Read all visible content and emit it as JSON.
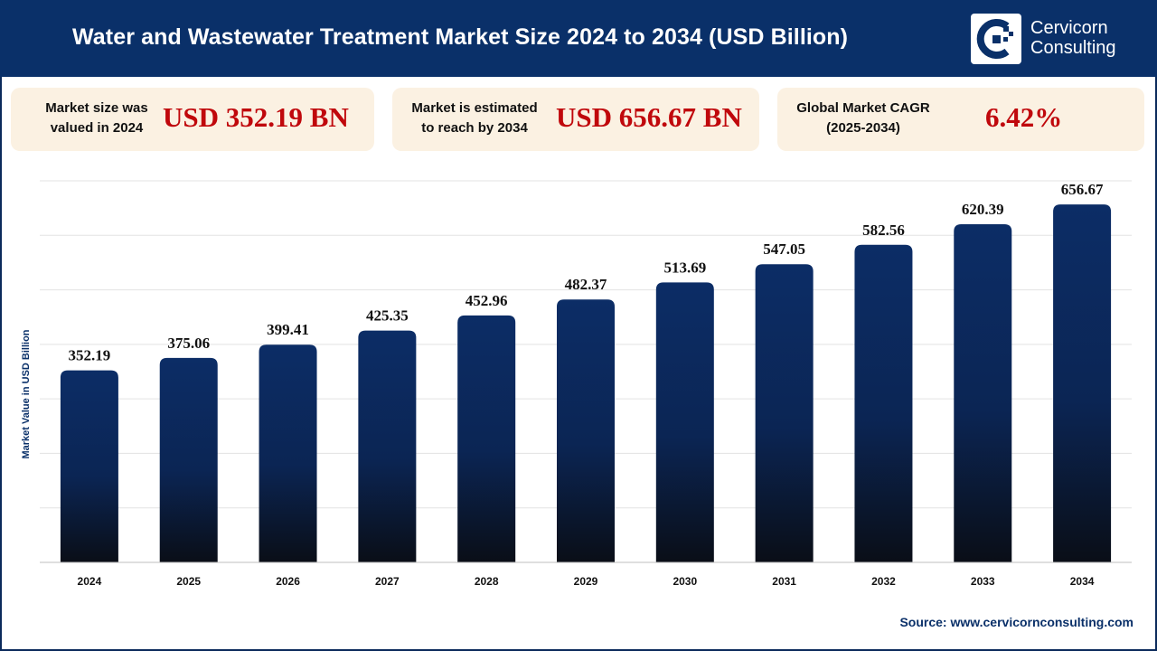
{
  "header": {
    "title": "Water and Wastewater Treatment Market Size 2024 to 2034 (USD Billion)",
    "logo_line1": "Cervicorn",
    "logo_line2": "Consulting",
    "logo_icon": "cervicorn-logo-icon"
  },
  "cards": [
    {
      "label_line1": "Market size was",
      "label_line2": "valued in 2024",
      "value": "USD 352.19 BN"
    },
    {
      "label_line1": "Market is estimated",
      "label_line2": "to reach by 2034",
      "value": "USD 656.67 BN"
    },
    {
      "label_line1": "Global Market CAGR",
      "label_line2": "(2025-2034)",
      "value": "6.42%"
    }
  ],
  "source": "Source: www.cervicornconsulting.com",
  "colors": {
    "header_bg": "#0a3069",
    "card_bg": "#fbf1e2",
    "value_red": "#c0080c",
    "bar_top": "#0c2d66",
    "bar_bottom": "#0a0e17"
  },
  "chart_data": {
    "type": "bar",
    "title": "Water and Wastewater Treatment Market Size 2024 to 2034 (USD Billion)",
    "xlabel": "",
    "ylabel": "Market Value in USD Billion",
    "categories": [
      "2024",
      "2025",
      "2026",
      "2027",
      "2028",
      "2029",
      "2030",
      "2031",
      "2032",
      "2033",
      "2034"
    ],
    "values": [
      352.19,
      375.06,
      399.41,
      425.35,
      452.96,
      482.37,
      513.69,
      547.05,
      582.56,
      620.39,
      656.67
    ],
    "value_labels": [
      "352.19",
      "375.06",
      "399.41",
      "425.35",
      "452.96",
      "482.37",
      "513.69",
      "547.05",
      "582.56",
      "620.39",
      "656.67"
    ],
    "ylim": [
      0,
      700
    ],
    "grid": true,
    "legend": "none"
  }
}
